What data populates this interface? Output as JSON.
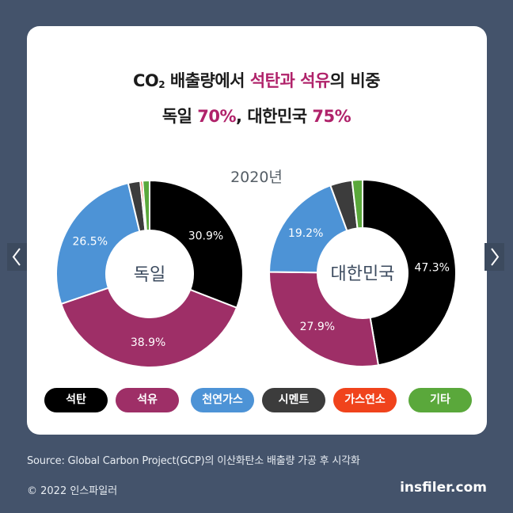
{
  "title": {
    "line1_pre": "CO",
    "line1_sub": "2",
    "line1_mid": " 배출량에서 ",
    "line1_hl": "석탄과 석유",
    "line1_post": "의 비중",
    "line2_a": "독일 ",
    "line2_a_hl": "70%",
    "line2_b": ", 대한민국 ",
    "line2_b_hl": "75%"
  },
  "year_label": "2020년",
  "chart_data": [
    {
      "type": "pie",
      "center_label": "독일",
      "slices": [
        {
          "category": "석탄",
          "value": 30.9,
          "label": "30.9%",
          "color": "#000000"
        },
        {
          "category": "석유",
          "value": 38.9,
          "label": "38.9%",
          "color": "#9e2f67"
        },
        {
          "category": "천연가스",
          "value": 26.5,
          "label": "26.5%",
          "color": "#4d93d6"
        },
        {
          "category": "시멘트",
          "value": 2.1,
          "label": "",
          "color": "#3c3c3c"
        },
        {
          "category": "가스연소",
          "value": 0.4,
          "label": "",
          "color": "#f0431c"
        },
        {
          "category": "기타",
          "value": 1.2,
          "label": "",
          "color": "#5aa83b"
        }
      ]
    },
    {
      "type": "pie",
      "center_label": "대한민국",
      "slices": [
        {
          "category": "석탄",
          "value": 47.3,
          "label": "47.3%",
          "color": "#000000"
        },
        {
          "category": "석유",
          "value": 27.9,
          "label": "27.9%",
          "color": "#9e2f67"
        },
        {
          "category": "천연가스",
          "value": 19.2,
          "label": "19.2%",
          "color": "#4d93d6"
        },
        {
          "category": "시멘트",
          "value": 3.8,
          "label": "",
          "color": "#3c3c3c"
        },
        {
          "category": "가스연소",
          "value": 0.0,
          "label": "",
          "color": "#f0431c"
        },
        {
          "category": "기타",
          "value": 1.8,
          "label": "",
          "color": "#5aa83b"
        }
      ]
    }
  ],
  "legend": [
    {
      "label": "석탄",
      "color": "#000000"
    },
    {
      "label": "석유",
      "color": "#9e2f67"
    },
    {
      "label": "천연가스",
      "color": "#4d93d6"
    },
    {
      "label": "시멘트",
      "color": "#3c3c3c"
    },
    {
      "label": "가스연소",
      "color": "#f0431c"
    },
    {
      "label": "기타",
      "color": "#5aa83b"
    }
  ],
  "footer": {
    "source": "Source: Global Carbon Project(GCP)의 이산화탄소 배출량 가공 후 시각화",
    "copyright": "© 2022 인스파일러",
    "brand": "insfiler.com"
  },
  "nav": {
    "prev_icon": "chevron-left-icon",
    "next_icon": "chevron-right-icon"
  }
}
